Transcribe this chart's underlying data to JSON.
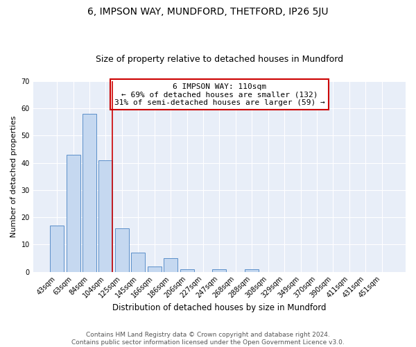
{
  "title": "6, IMPSON WAY, MUNDFORD, THETFORD, IP26 5JU",
  "subtitle": "Size of property relative to detached houses in Mundford",
  "xlabel": "Distribution of detached houses by size in Mundford",
  "ylabel": "Number of detached properties",
  "bar_labels": [
    "43sqm",
    "63sqm",
    "84sqm",
    "104sqm",
    "125sqm",
    "145sqm",
    "166sqm",
    "186sqm",
    "206sqm",
    "227sqm",
    "247sqm",
    "268sqm",
    "288sqm",
    "308sqm",
    "329sqm",
    "349sqm",
    "370sqm",
    "390sqm",
    "411sqm",
    "431sqm",
    "451sqm"
  ],
  "bar_values": [
    17,
    43,
    58,
    41,
    16,
    7,
    2,
    5,
    1,
    0,
    1,
    0,
    1,
    0,
    0,
    0,
    0,
    0,
    0,
    0,
    0
  ],
  "bar_color": "#c5d8f0",
  "bar_edge_color": "#5b8fc9",
  "bg_color": "#e8eef8",
  "grid_color": "#ffffff",
  "vline_color": "#cc0000",
  "annotation_text": "6 IMPSON WAY: 110sqm\n← 69% of detached houses are smaller (132)\n31% of semi-detached houses are larger (59) →",
  "annotation_box_color": "#ffffff",
  "annotation_box_edge": "#cc0000",
  "ylim": [
    0,
    70
  ],
  "yticks": [
    0,
    10,
    20,
    30,
    40,
    50,
    60,
    70
  ],
  "footer": "Contains HM Land Registry data © Crown copyright and database right 2024.\nContains public sector information licensed under the Open Government Licence v3.0.",
  "title_fontsize": 10,
  "subtitle_fontsize": 9,
  "tick_fontsize": 7,
  "ylabel_fontsize": 8,
  "xlabel_fontsize": 8.5,
  "footer_fontsize": 6.5,
  "annotation_fontsize": 8
}
